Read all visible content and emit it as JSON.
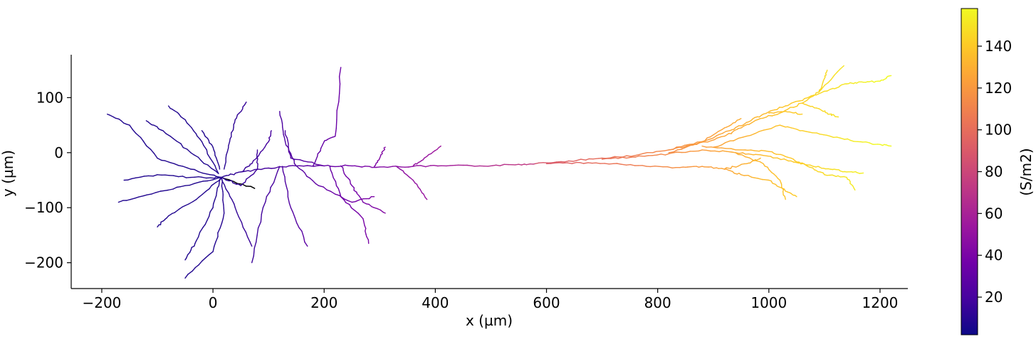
{
  "chart_data": {
    "type": "line",
    "title": "",
    "xlabel": "x (µm)",
    "ylabel": "y (µm)",
    "xlim": [
      -255,
      1250
    ],
    "ylim": [
      -247,
      178
    ],
    "xticks": [
      -200,
      0,
      200,
      400,
      600,
      800,
      1000,
      1200
    ],
    "xtick_labels": [
      "−200",
      "0",
      "200",
      "400",
      "600",
      "800",
      "1000",
      "1200"
    ],
    "yticks": [
      -200,
      -100,
      0,
      100
    ],
    "ytick_labels": [
      "−200",
      "−100",
      "0",
      "100"
    ],
    "grid": false,
    "colorbar": {
      "label": "(S/m2)",
      "range": [
        2,
        158
      ],
      "ticks": [
        20,
        40,
        60,
        80,
        100,
        120,
        140
      ],
      "tick_labels": [
        "20",
        "40",
        "60",
        "80",
        "100",
        "120",
        "140"
      ],
      "colormap": "plasma",
      "stops": [
        "#0d0887",
        "#46039f",
        "#7201a8",
        "#9c179e",
        "#bd3786",
        "#d8576b",
        "#ed7953",
        "#fb9f3a",
        "#fdca26",
        "#f0f921"
      ]
    },
    "series": [
      {
        "value": 5,
        "points": [
          [
            15,
            -45
          ],
          [
            75,
            -65
          ]
        ],
        "color": "#000000"
      },
      {
        "value": 8,
        "points": [
          [
            15,
            -45
          ],
          [
            50,
            -35
          ],
          [
            100,
            -28
          ],
          [
            150,
            -24
          ],
          [
            200,
            -24
          ],
          [
            250,
            -24
          ],
          [
            300,
            -26
          ],
          [
            360,
            -25
          ],
          [
            420,
            -24
          ],
          [
            480,
            -24
          ],
          [
            540,
            -22
          ],
          [
            580,
            -20
          ]
        ]
      },
      {
        "value": 8,
        "points": [
          [
            15,
            -45
          ],
          [
            -40,
            -30
          ],
          [
            -100,
            -10
          ],
          [
            -150,
            50
          ],
          [
            -190,
            70
          ]
        ]
      },
      {
        "value": 8,
        "points": [
          [
            10,
            -38
          ],
          [
            -40,
            0
          ],
          [
            -90,
            40
          ],
          [
            -120,
            58
          ]
        ]
      },
      {
        "value": 8,
        "points": [
          [
            10,
            -38
          ],
          [
            -20,
            20
          ],
          [
            -50,
            60
          ],
          [
            -80,
            85
          ]
        ]
      },
      {
        "value": 8,
        "points": [
          [
            12,
            -30
          ],
          [
            0,
            10
          ],
          [
            -20,
            40
          ]
        ]
      },
      {
        "value": 8,
        "points": [
          [
            15,
            -45
          ],
          [
            -40,
            -45
          ],
          [
            -100,
            -40
          ],
          [
            -160,
            -50
          ]
        ]
      },
      {
        "value": 8,
        "points": [
          [
            15,
            -45
          ],
          [
            -50,
            -60
          ],
          [
            -110,
            -75
          ],
          [
            -170,
            -90
          ]
        ]
      },
      {
        "value": 8,
        "points": [
          [
            15,
            -45
          ],
          [
            -30,
            -85
          ],
          [
            -80,
            -115
          ],
          [
            -100,
            -135
          ]
        ]
      },
      {
        "value": 8,
        "points": [
          [
            15,
            -45
          ],
          [
            0,
            -100
          ],
          [
            -30,
            -160
          ],
          [
            -50,
            -195
          ]
        ]
      },
      {
        "value": 8,
        "points": [
          [
            15,
            -45
          ],
          [
            20,
            -110
          ],
          [
            0,
            -180
          ],
          [
            -50,
            -228
          ]
        ]
      },
      {
        "value": 8,
        "points": [
          [
            15,
            -45
          ],
          [
            40,
            -100
          ],
          [
            70,
            -170
          ]
        ]
      },
      {
        "value": 8,
        "points": [
          [
            15,
            -45
          ],
          [
            50,
            -60
          ],
          [
            80,
            -30
          ],
          [
            80,
            5
          ]
        ]
      },
      {
        "value": 8,
        "points": [
          [
            20,
            -30
          ],
          [
            30,
            20
          ],
          [
            40,
            60
          ],
          [
            60,
            92
          ]
        ]
      },
      {
        "value": 8,
        "points": [
          [
            50,
            -35
          ],
          [
            70,
            -20
          ],
          [
            100,
            20
          ],
          [
            105,
            40
          ]
        ]
      },
      {
        "value": 8,
        "points": [
          [
            120,
            -25
          ],
          [
            90,
            -100
          ],
          [
            70,
            -200
          ]
        ]
      },
      {
        "value": 8,
        "points": [
          [
            125,
            -25
          ],
          [
            140,
            -100
          ],
          [
            170,
            -170
          ]
        ]
      },
      {
        "value": 8,
        "points": [
          [
            150,
            -24
          ],
          [
            190,
            -60
          ],
          [
            250,
            -90
          ],
          [
            290,
            -80
          ]
        ]
      },
      {
        "value": 8,
        "points": [
          [
            150,
            -24
          ],
          [
            130,
            20
          ],
          [
            120,
            75
          ]
        ]
      },
      {
        "value": 8,
        "points": [
          [
            180,
            -24
          ],
          [
            200,
            20
          ],
          [
            220,
            30
          ],
          [
            230,
            155
          ]
        ]
      },
      {
        "value": 8,
        "points": [
          [
            210,
            -24
          ],
          [
            230,
            -80
          ],
          [
            270,
            -120
          ],
          [
            280,
            -165
          ]
        ]
      },
      {
        "value": 8,
        "points": [
          [
            230,
            -24
          ],
          [
            250,
            -60
          ],
          [
            270,
            -90
          ],
          [
            310,
            -110
          ]
        ]
      },
      {
        "value": 8,
        "points": [
          [
            290,
            -26
          ],
          [
            300,
            -10
          ],
          [
            310,
            10
          ]
        ]
      },
      {
        "value": 8,
        "points": [
          [
            360,
            -25
          ],
          [
            380,
            -10
          ],
          [
            410,
            12
          ]
        ]
      },
      {
        "value": 8,
        "points": [
          [
            330,
            -25
          ],
          [
            360,
            -50
          ],
          [
            385,
            -85
          ]
        ]
      },
      {
        "value": 8,
        "points": [
          [
            200,
            -24
          ],
          [
            140,
            -10
          ],
          [
            130,
            40
          ]
        ]
      },
      {
        "value": 20,
        "points": [
          [
            580,
            -20
          ],
          [
            640,
            -15
          ],
          [
            700,
            -10
          ],
          [
            760,
            -5
          ],
          [
            820,
            5
          ],
          [
            870,
            15
          ],
          [
            920,
            30
          ],
          [
            950,
            45
          ],
          [
            980,
            60
          ],
          [
            1020,
            72
          ],
          [
            1060,
            90
          ],
          [
            1090,
            110
          ],
          [
            1135,
            158
          ]
        ]
      },
      {
        "value": 20,
        "points": [
          [
            600,
            -20
          ],
          [
            660,
            -18
          ],
          [
            720,
            -20
          ],
          [
            780,
            -25
          ],
          [
            840,
            -27
          ],
          [
            880,
            -25
          ],
          [
            920,
            -30
          ],
          [
            950,
            -40
          ],
          [
            1000,
            -50
          ],
          [
            1030,
            -70
          ],
          [
            1050,
            -80
          ]
        ]
      },
      {
        "value": 20,
        "points": [
          [
            700,
            -12
          ],
          [
            760,
            -8
          ],
          [
            820,
            -2
          ],
          [
            880,
            5
          ],
          [
            940,
            0
          ],
          [
            990,
            -5
          ],
          [
            1040,
            -15
          ],
          [
            1080,
            -25
          ],
          [
            1110,
            -30
          ],
          [
            1140,
            -35
          ],
          [
            1170,
            -37
          ]
        ]
      },
      {
        "value": 20,
        "points": [
          [
            820,
            0
          ],
          [
            880,
            20
          ],
          [
            930,
            40
          ],
          [
            960,
            55
          ],
          [
            990,
            70
          ],
          [
            1030,
            85
          ],
          [
            1070,
            100
          ],
          [
            1110,
            115
          ],
          [
            1140,
            125
          ],
          [
            1170,
            128
          ],
          [
            1200,
            130
          ],
          [
            1220,
            140
          ]
        ]
      },
      {
        "value": 20,
        "points": [
          [
            820,
            5
          ],
          [
            880,
            20
          ],
          [
            920,
            45
          ],
          [
            950,
            62
          ]
        ]
      },
      {
        "value": 20,
        "points": [
          [
            880,
            12
          ],
          [
            950,
            5
          ],
          [
            1000,
            2
          ],
          [
            1040,
            -10
          ],
          [
            1070,
            -25
          ],
          [
            1100,
            -40
          ],
          [
            1140,
            -45
          ],
          [
            1155,
            -68
          ]
        ]
      },
      {
        "value": 20,
        "points": [
          [
            900,
            10
          ],
          [
            960,
            30
          ],
          [
            1020,
            50
          ],
          [
            1060,
            40
          ],
          [
            1110,
            30
          ],
          [
            1160,
            20
          ],
          [
            1200,
            15
          ],
          [
            1220,
            12
          ]
        ]
      },
      {
        "value": 20,
        "points": [
          [
            920,
            -30
          ],
          [
            960,
            -20
          ],
          [
            985,
            -10
          ]
        ]
      },
      {
        "value": 20,
        "points": [
          [
            940,
            0
          ],
          [
            990,
            -20
          ],
          [
            1020,
            -50
          ],
          [
            1030,
            -85
          ]
        ]
      },
      {
        "value": 20,
        "points": [
          [
            1060,
            90
          ],
          [
            1090,
            80
          ],
          [
            1110,
            70
          ],
          [
            1125,
            65
          ]
        ]
      },
      {
        "value": 20,
        "points": [
          [
            1090,
            110
          ],
          [
            1100,
            135
          ],
          [
            1105,
            150
          ]
        ]
      },
      {
        "value": 20,
        "points": [
          [
            1000,
            72
          ],
          [
            1030,
            75
          ],
          [
            1060,
            70
          ]
        ]
      }
    ]
  }
}
